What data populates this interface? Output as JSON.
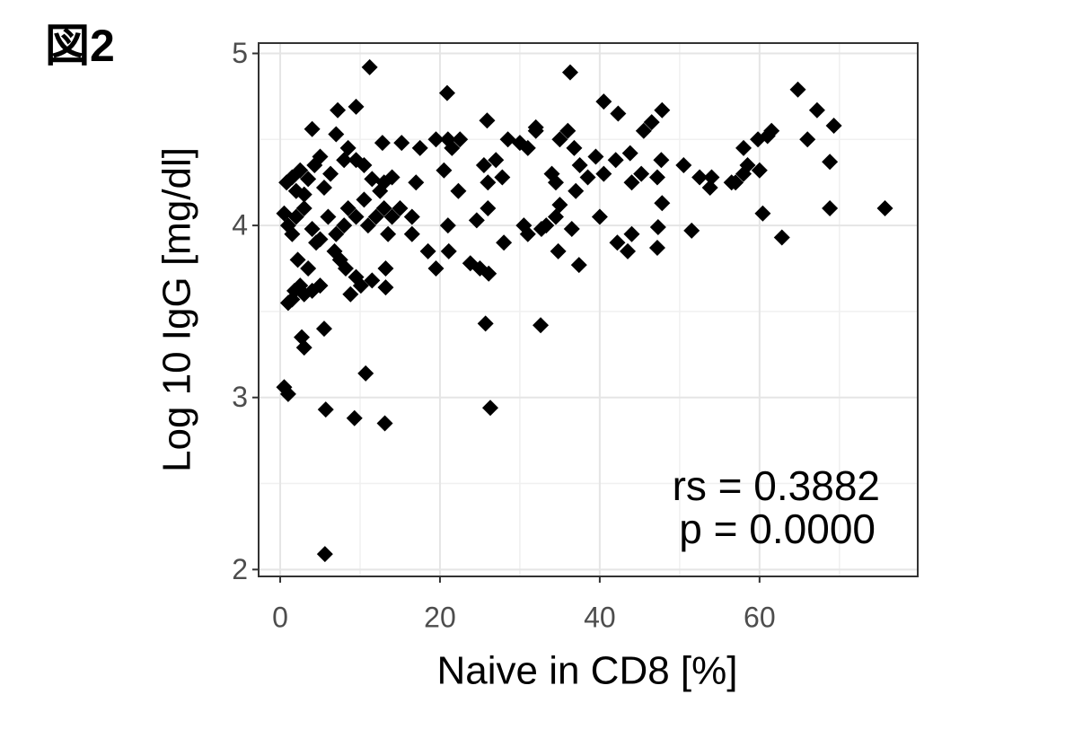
{
  "chart_data": {
    "type": "scatter",
    "title": "図2",
    "x_label": "Naive in CD8 [%]",
    "y_label": "Log 10 IgG [mg/dl]",
    "annotations": [
      "rs = 0.3882",
      "p = 0.0000"
    ],
    "color": "#000000",
    "grid": true,
    "xlim": [
      -2.7,
      79.8
    ],
    "ylim": [
      1.96,
      5.06
    ],
    "xticks": [
      0,
      20,
      40,
      60
    ],
    "yticks": [
      2,
      3,
      4,
      5
    ],
    "x": [
      5.6,
      0.5,
      1,
      5.7,
      9.3,
      13.1,
      10.7,
      26.3,
      2.7,
      3,
      5.5,
      25.7,
      32.6,
      1,
      1.5,
      1.8,
      2.5,
      3,
      4,
      5,
      2.2,
      3.5,
      6.8,
      7.5,
      8.2,
      8.8,
      9.5,
      10.1,
      11.5,
      13.2,
      13.2,
      18.5,
      19.5,
      21.1,
      23.8,
      25,
      26.1,
      28,
      31,
      33.3,
      34.8,
      37.4,
      36.5,
      42.2,
      43.5,
      44,
      47.2,
      47.3,
      51.5,
      62.8,
      0.5,
      1,
      1.5,
      2,
      3,
      4,
      4.5,
      5,
      6,
      7,
      8,
      8.5,
      9.5,
      10.5,
      11,
      12,
      13,
      13.5,
      14,
      15,
      16.5,
      16.5,
      21,
      22.3,
      24.6,
      26,
      30.5,
      32.7,
      34.5,
      35,
      37,
      40,
      44,
      45.2,
      47.2,
      47.8,
      50.5,
      52.5,
      53.8,
      54,
      57,
      58,
      60,
      60.4,
      68.8,
      75.7,
      0.8,
      1.5,
      2,
      2.5,
      3,
      3.5,
      4.3,
      5,
      5.5,
      6.3,
      8,
      8.5,
      9.5,
      10.5,
      11.5,
      12.5,
      13,
      14,
      15.2,
      17,
      17.5,
      19.5,
      20.5,
      21,
      21.5,
      22.5,
      25.5,
      26,
      27,
      27.8,
      28.5,
      30,
      31,
      32,
      34,
      34.5,
      35,
      36,
      36.8,
      37.5,
      38.5,
      39.5,
      40.5,
      42,
      43.8,
      45.5,
      46.5,
      47.7,
      56.5,
      58,
      58.5,
      59.8,
      61,
      61.5,
      66,
      68.8,
      4,
      7,
      7.2,
      9.5,
      11.2,
      12.8,
      20.9,
      25.9,
      32,
      36.3,
      40.5,
      42.3,
      47.8,
      64.8,
      67.2,
      69.3
    ],
    "values": [
      2.09,
      3.06,
      3.02,
      2.93,
      2.88,
      2.85,
      3.14,
      2.94,
      3.35,
      3.29,
      3.4,
      3.43,
      3.42,
      3.55,
      3.57,
      3.62,
      3.65,
      3.6,
      3.62,
      3.65,
      3.8,
      3.75,
      3.85,
      3.8,
      3.75,
      3.6,
      3.7,
      3.65,
      3.68,
      3.64,
      3.75,
      3.85,
      3.75,
      3.85,
      3.78,
      3.75,
      3.72,
      3.9,
      3.95,
      4.0,
      3.85,
      3.77,
      3.98,
      3.9,
      3.85,
      3.95,
      3.87,
      3.99,
      3.97,
      3.93,
      4.07,
      4.0,
      3.95,
      4.05,
      4.1,
      3.98,
      3.9,
      3.92,
      4.05,
      3.95,
      4.0,
      4.1,
      4.05,
      4.15,
      4.0,
      4.05,
      4.1,
      3.95,
      4.05,
      4.1,
      4.05,
      3.95,
      4.0,
      4.2,
      4.03,
      4.1,
      4.0,
      3.98,
      4.05,
      4.12,
      4.2,
      4.05,
      4.25,
      4.3,
      4.28,
      4.13,
      4.35,
      4.28,
      4.22,
      4.28,
      4.25,
      4.3,
      4.32,
      4.07,
      4.1,
      4.1,
      4.25,
      4.28,
      4.2,
      4.32,
      4.18,
      4.27,
      4.35,
      4.4,
      4.22,
      4.3,
      4.38,
      4.45,
      4.38,
      4.35,
      4.27,
      4.2,
      4.25,
      4.28,
      4.48,
      4.25,
      4.45,
      4.5,
      4.32,
      4.5,
      4.45,
      4.5,
      4.35,
      4.25,
      4.38,
      4.28,
      4.5,
      4.48,
      4.45,
      4.55,
      4.3,
      4.25,
      4.5,
      4.55,
      4.45,
      4.35,
      4.28,
      4.4,
      4.3,
      4.38,
      4.42,
      4.55,
      4.6,
      4.38,
      4.25,
      4.45,
      4.35,
      4.5,
      4.52,
      4.55,
      4.5,
      4.37,
      4.56,
      4.53,
      4.67,
      4.69,
      4.92,
      4.48,
      4.77,
      4.61,
      4.57,
      4.89,
      4.72,
      4.65,
      4.67,
      4.79,
      4.67,
      4.58
    ]
  }
}
